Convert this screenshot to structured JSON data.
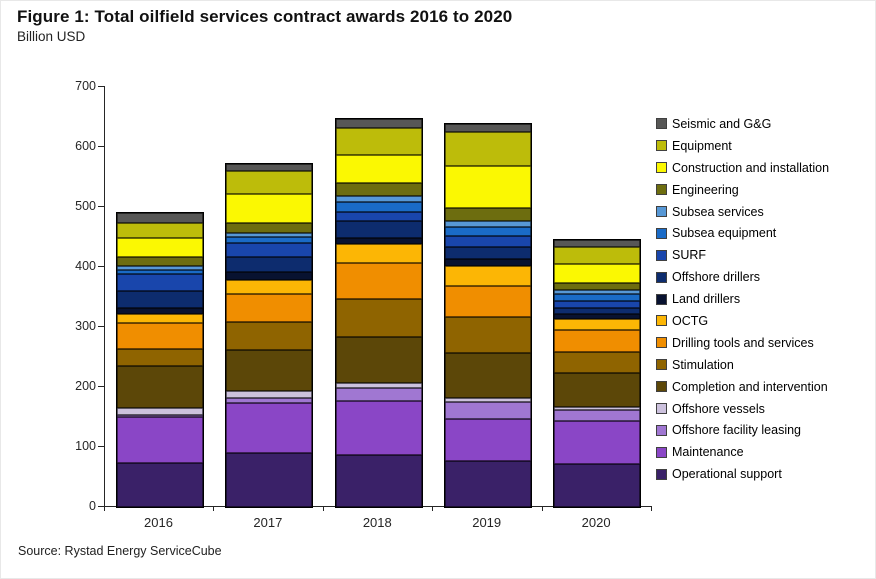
{
  "header": {
    "title": "Figure 1: Total oilfield services contract awards 2016 to 2020",
    "subtitle": "Billion USD"
  },
  "footer": {
    "source": "Source: Rystad Energy ServiceCube"
  },
  "chart_data": {
    "type": "bar",
    "stacked": true,
    "title": "Figure 1: Total oilfield services contract awards 2016 to 2020",
    "ylabel": "Billion USD",
    "xlabel": "",
    "categories": [
      "2016",
      "2017",
      "2018",
      "2019",
      "2020"
    ],
    "ylim": [
      0,
      700
    ],
    "ytick_step": 100,
    "yticks": [
      0,
      100,
      200,
      300,
      400,
      500,
      600,
      700
    ],
    "grid": false,
    "legend_position": "right",
    "series": [
      {
        "name": "Seismic and G&G",
        "color": "#575756",
        "values": [
          16,
          11,
          15,
          14,
          12
        ]
      },
      {
        "name": "Equipment",
        "color": "#BDBC0A",
        "values": [
          25,
          39,
          45,
          56,
          28
        ]
      },
      {
        "name": "Construction and installation",
        "color": "#FBF802",
        "values": [
          32,
          47,
          46,
          70,
          32
        ]
      },
      {
        "name": "Engineering",
        "color": "#6D6D0F",
        "values": [
          15,
          17,
          21,
          22,
          11
        ]
      },
      {
        "name": "Subsea services",
        "color": "#5798D6",
        "values": [
          7,
          7,
          11,
          10,
          7
        ]
      },
      {
        "name": "Subsea equipment",
        "color": "#1A6BC7",
        "values": [
          7,
          10,
          17,
          16,
          11
        ]
      },
      {
        "name": "SURF",
        "color": "#1946AC",
        "values": [
          28,
          24,
          14,
          17,
          12
        ]
      },
      {
        "name": "Offshore drillers",
        "color": "#0D2C6E",
        "values": [
          28,
          25,
          28,
          20,
          10
        ]
      },
      {
        "name": "Land drillers",
        "color": "#081230",
        "values": [
          10,
          13,
          11,
          13,
          8
        ]
      },
      {
        "name": "OCTG",
        "color": "#FCB605",
        "values": [
          15,
          23,
          31,
          32,
          19
        ]
      },
      {
        "name": "Drilling tools and services",
        "color": "#F08E00",
        "values": [
          44,
          46,
          60,
          53,
          36
        ]
      },
      {
        "name": "Stimulation",
        "color": "#8F6400",
        "values": [
          28,
          48,
          63,
          59,
          35
        ]
      },
      {
        "name": "Completion and intervention",
        "color": "#5C4708",
        "values": [
          70,
          67,
          77,
          75,
          57
        ]
      },
      {
        "name": "Offshore vessels",
        "color": "#CCC1DD",
        "values": [
          11,
          13,
          8,
          7,
          6
        ]
      },
      {
        "name": "Offshore facility leasing",
        "color": "#A077D2",
        "values": [
          4,
          8,
          23,
          29,
          18
        ]
      },
      {
        "name": "Maintenance",
        "color": "#8A46C6",
        "values": [
          77,
          83,
          90,
          70,
          71
        ]
      },
      {
        "name": "Operational support",
        "color": "#3A2168",
        "values": [
          73,
          90,
          86,
          76,
          72
        ]
      }
    ]
  }
}
